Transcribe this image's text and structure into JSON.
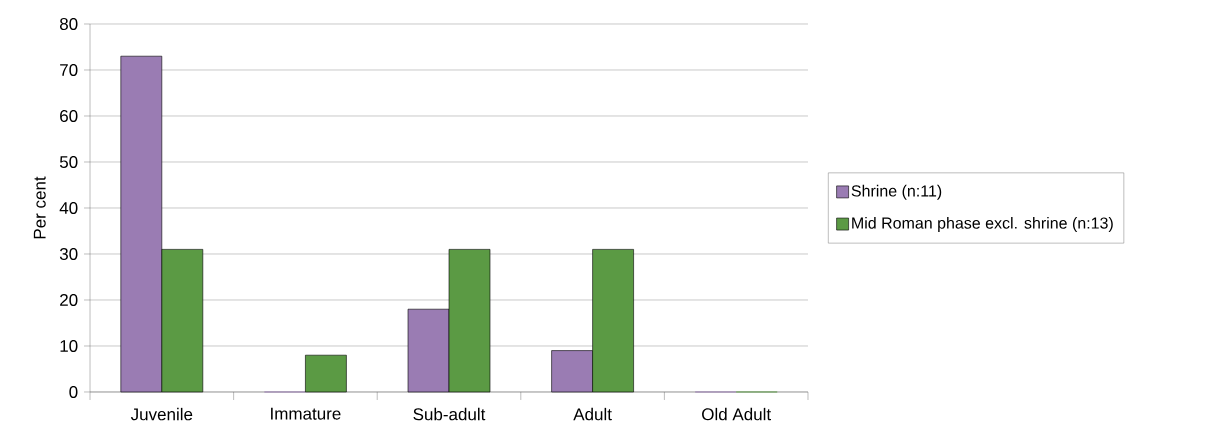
{
  "chart_data": {
    "type": "bar",
    "ylabel": "Per cent",
    "categories": [
      "Juvenile",
      "Immature",
      "Sub-adult",
      "Adult",
      "Old Adult"
    ],
    "series": [
      {
        "name": "Shrine (n:11)",
        "color": "#9a7cb3",
        "values": [
          73,
          0,
          18,
          9,
          0
        ]
      },
      {
        "name": "Mid Roman phase excl. shrine (n:13)",
        "color": "#5b9a44",
        "values": [
          31,
          8,
          31,
          31,
          0
        ]
      }
    ],
    "ylim": [
      0,
      80
    ],
    "yticks": [
      0,
      10,
      20,
      30,
      40,
      50,
      60,
      70,
      80
    ],
    "grid": "y",
    "legend": "right"
  }
}
